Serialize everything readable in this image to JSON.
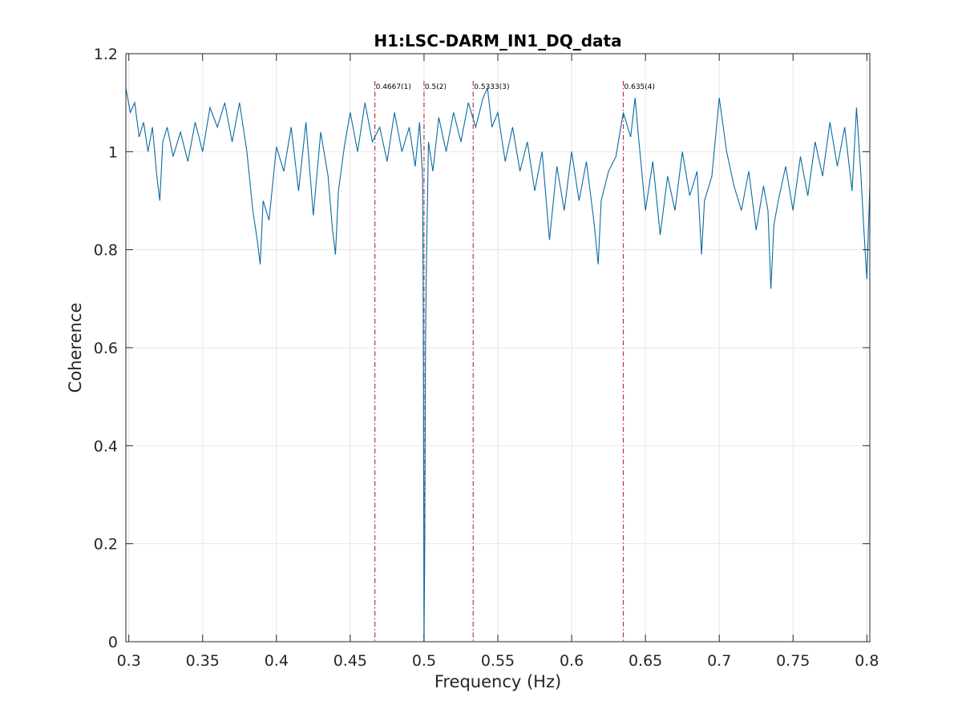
{
  "chart_data": {
    "type": "line",
    "title": "H1:LSC-DARM_IN1_DQ_data",
    "xlabel": "Frequency (Hz)",
    "ylabel": "Coherence",
    "xlim": [
      0.298,
      0.802
    ],
    "ylim": [
      0,
      1.2
    ],
    "grid": true,
    "xticks": [
      0.3,
      0.35,
      0.4,
      0.45,
      0.5,
      0.55,
      0.6,
      0.65,
      0.7,
      0.75,
      0.8
    ],
    "xtick_labels": [
      "0.3",
      "0.35",
      "0.4",
      "0.45",
      "0.5",
      "0.55",
      "0.6",
      "0.65",
      "0.7",
      "0.75",
      "0.8"
    ],
    "yticks": [
      0,
      0.2,
      0.4,
      0.6,
      0.8,
      1,
      1.2
    ],
    "ytick_labels": [
      "0",
      "0.2",
      "0.4",
      "0.6",
      "0.8",
      "1",
      "1.2"
    ],
    "series": [
      {
        "color": "#0b6aa2",
        "x": [
          0.298,
          0.301,
          0.304,
          0.307,
          0.31,
          0.313,
          0.316,
          0.319,
          0.321,
          0.323,
          0.326,
          0.33,
          0.335,
          0.34,
          0.345,
          0.35,
          0.355,
          0.36,
          0.365,
          0.37,
          0.375,
          0.38,
          0.384,
          0.387,
          0.389,
          0.391,
          0.395,
          0.4,
          0.405,
          0.41,
          0.415,
          0.42,
          0.425,
          0.43,
          0.435,
          0.438,
          0.44,
          0.442,
          0.446,
          0.45,
          0.455,
          0.46,
          0.465,
          0.47,
          0.475,
          0.48,
          0.485,
          0.49,
          0.494,
          0.497,
          0.499,
          0.4995,
          0.5,
          0.5005,
          0.501,
          0.5015,
          0.503,
          0.506,
          0.51,
          0.515,
          0.52,
          0.525,
          0.53,
          0.535,
          0.54,
          0.543,
          0.546,
          0.55,
          0.555,
          0.56,
          0.565,
          0.57,
          0.575,
          0.58,
          0.585,
          0.59,
          0.595,
          0.6,
          0.605,
          0.61,
          0.615,
          0.618,
          0.62,
          0.625,
          0.63,
          0.635,
          0.64,
          0.643,
          0.645,
          0.65,
          0.655,
          0.66,
          0.665,
          0.67,
          0.675,
          0.68,
          0.685,
          0.688,
          0.69,
          0.695,
          0.7,
          0.705,
          0.71,
          0.715,
          0.72,
          0.725,
          0.73,
          0.733,
          0.735,
          0.737,
          0.74,
          0.745,
          0.75,
          0.755,
          0.76,
          0.765,
          0.77,
          0.775,
          0.78,
          0.785,
          0.79,
          0.793,
          0.796,
          0.798,
          0.8,
          0.802
        ],
        "y": [
          1.13,
          1.08,
          1.1,
          1.03,
          1.06,
          1.0,
          1.05,
          0.95,
          0.9,
          1.02,
          1.05,
          0.99,
          1.04,
          0.98,
          1.06,
          1.0,
          1.09,
          1.05,
          1.1,
          1.02,
          1.1,
          1.0,
          0.88,
          0.82,
          0.77,
          0.9,
          0.86,
          1.01,
          0.96,
          1.05,
          0.92,
          1.06,
          0.87,
          1.04,
          0.95,
          0.84,
          0.79,
          0.92,
          1.01,
          1.08,
          1.0,
          1.1,
          1.02,
          1.05,
          0.98,
          1.08,
          1.0,
          1.05,
          0.97,
          1.06,
          0.95,
          0.65,
          0.0,
          0.2,
          0.6,
          0.75,
          1.02,
          0.96,
          1.07,
          1.0,
          1.08,
          1.02,
          1.1,
          1.05,
          1.11,
          1.13,
          1.05,
          1.08,
          0.98,
          1.05,
          0.96,
          1.02,
          0.92,
          1.0,
          0.82,
          0.97,
          0.88,
          1.0,
          0.9,
          0.98,
          0.86,
          0.77,
          0.9,
          0.96,
          0.99,
          1.08,
          1.03,
          1.11,
          1.04,
          0.88,
          0.98,
          0.83,
          0.95,
          0.88,
          1.0,
          0.91,
          0.96,
          0.79,
          0.9,
          0.95,
          1.11,
          1.0,
          0.93,
          0.88,
          0.96,
          0.84,
          0.93,
          0.88,
          0.72,
          0.85,
          0.9,
          0.97,
          0.88,
          0.99,
          0.91,
          1.02,
          0.95,
          1.06,
          0.97,
          1.05,
          0.92,
          1.09,
          0.95,
          0.84,
          0.74,
          0.93
        ]
      }
    ],
    "markers": [
      {
        "x": 0.4667,
        "label": "0.4667(1)"
      },
      {
        "x": 0.5,
        "label": "0.5(2)"
      },
      {
        "x": 0.5333,
        "label": "0.5333(3)"
      },
      {
        "x": 0.635,
        "label": "0.635(4)"
      }
    ]
  }
}
